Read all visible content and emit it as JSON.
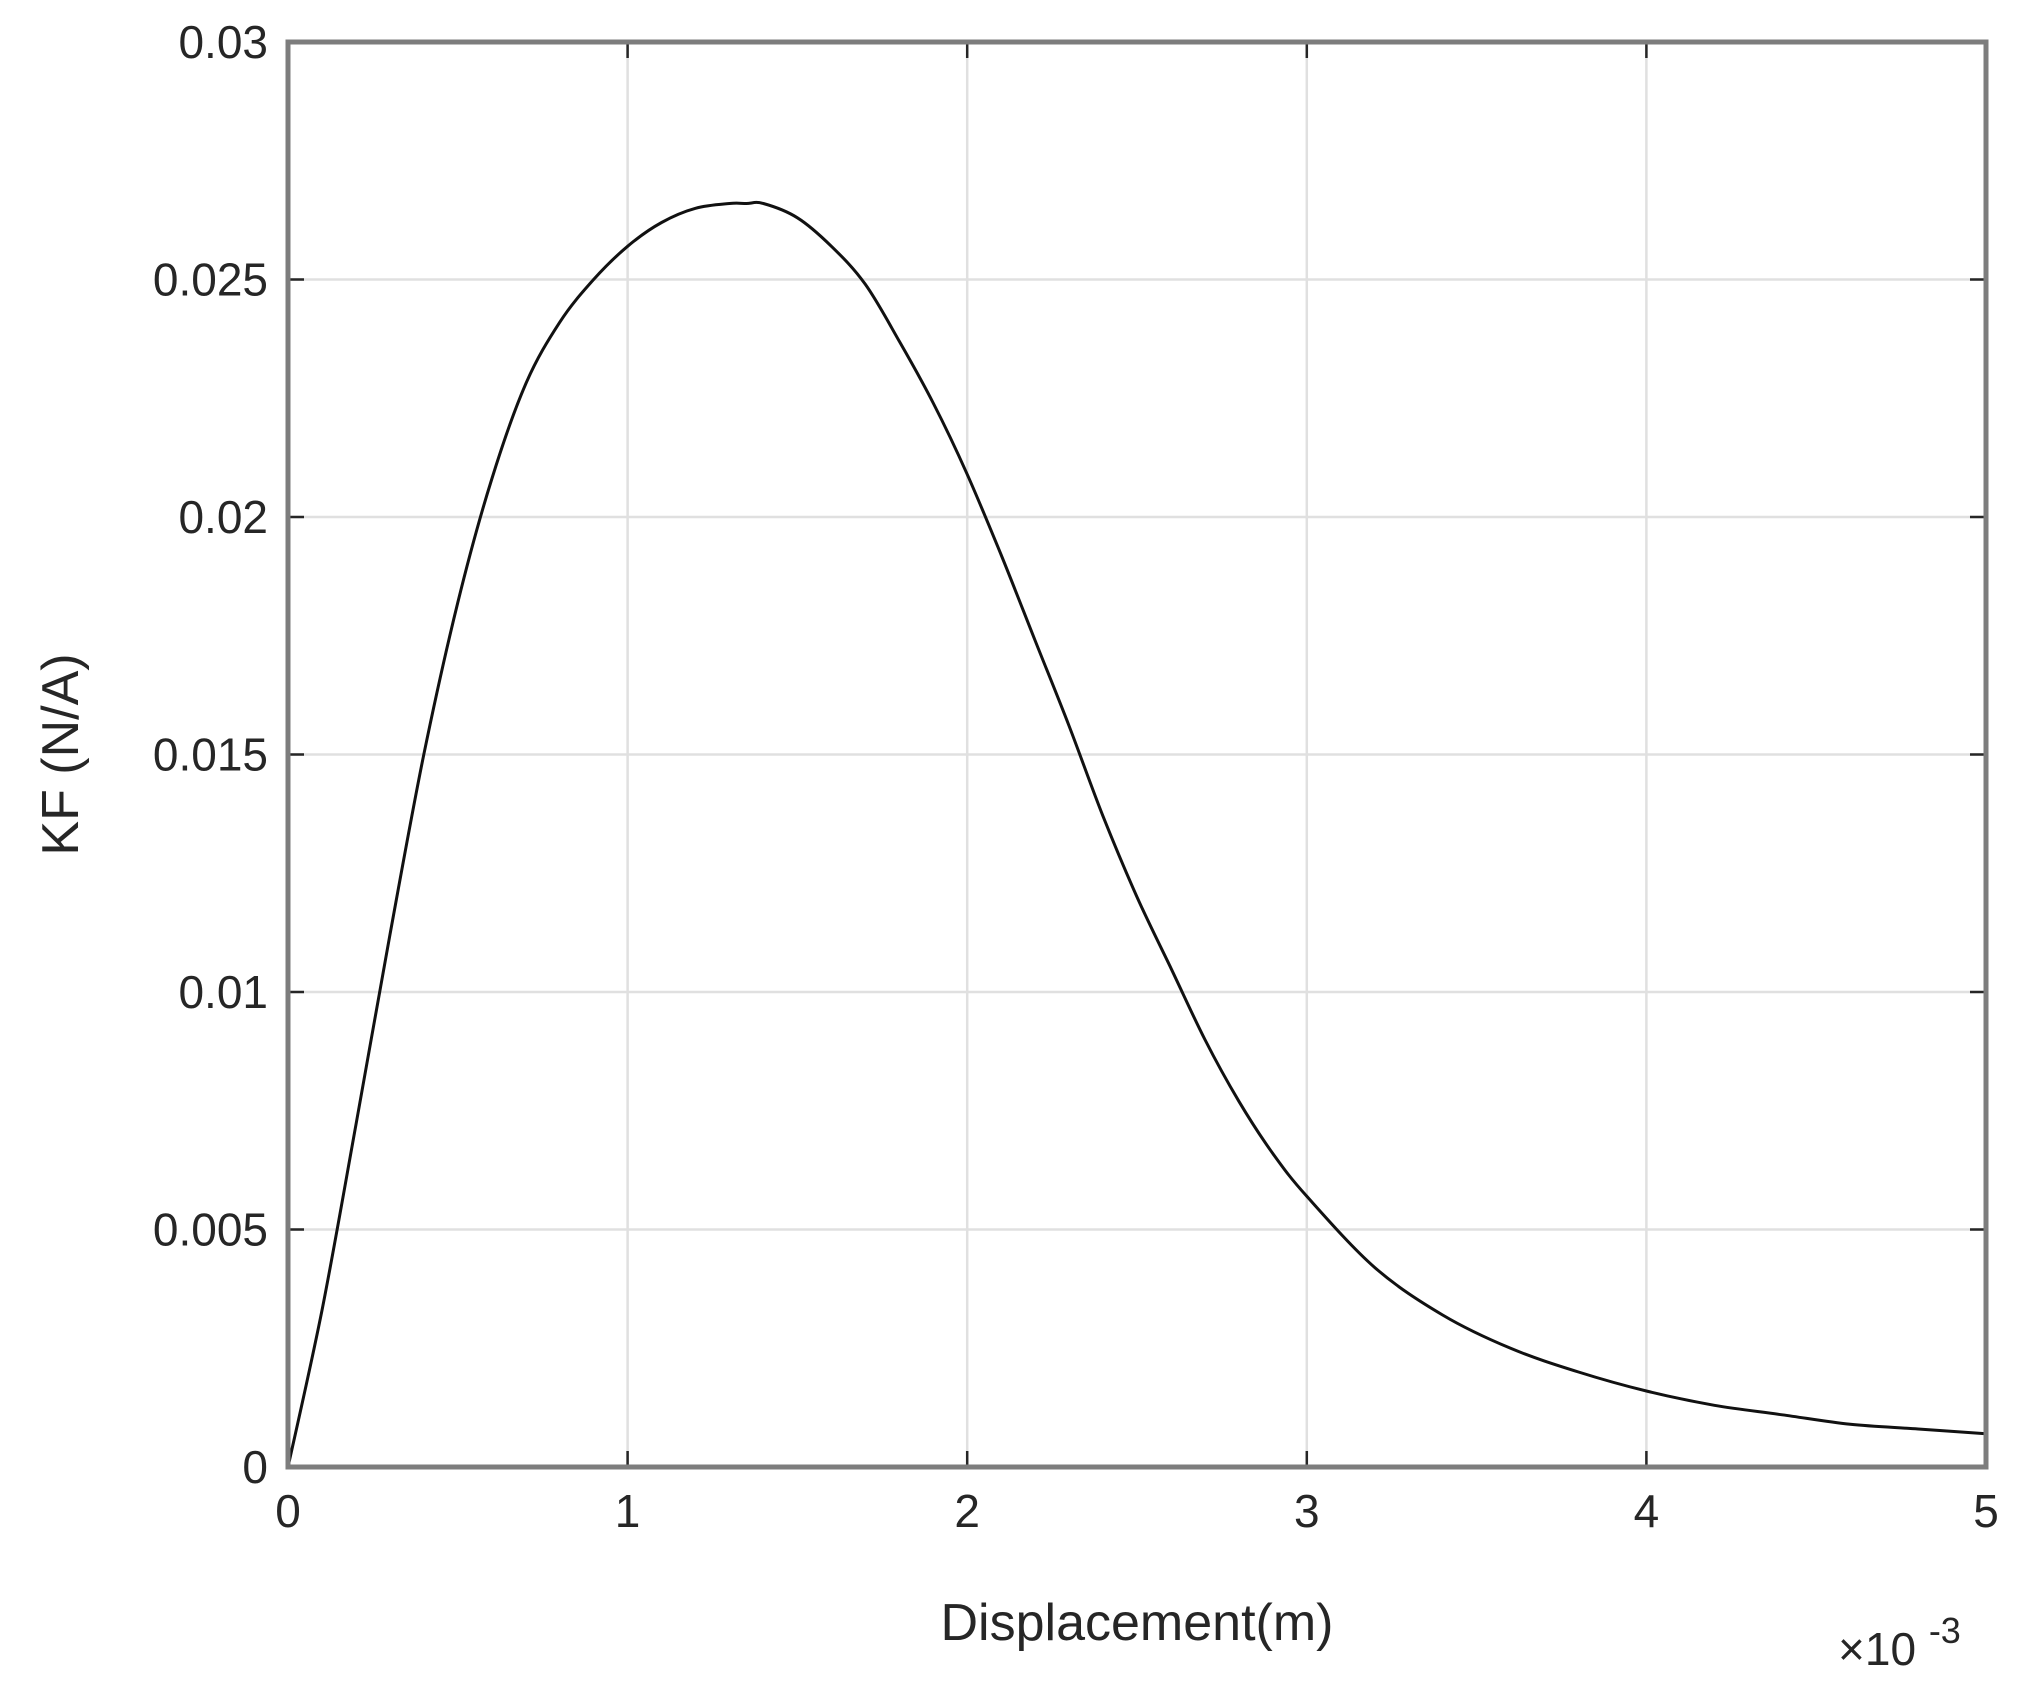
{
  "chart_data": {
    "type": "line",
    "title": "",
    "xlabel": "Displacement(m)",
    "ylabel": "KF (N/A)",
    "x_exponent_label": "×10",
    "x_exponent_power": "-3",
    "xlim": [
      0,
      5
    ],
    "ylim": [
      0,
      0.03
    ],
    "x_ticks": [
      0,
      1,
      2,
      3,
      4,
      5
    ],
    "x_tick_labels": [
      "0",
      "1",
      "2",
      "3",
      "4",
      "5"
    ],
    "y_ticks": [
      0,
      0.005,
      0.01,
      0.015,
      0.02,
      0.025,
      0.03
    ],
    "y_tick_labels": [
      "0",
      "0.005",
      "0.01",
      "0.015",
      "0.02",
      "0.025",
      "0.03"
    ],
    "grid": true,
    "series": [
      {
        "color": "#111111",
        "x": [
          0,
          0.1,
          0.2,
          0.3,
          0.4,
          0.5,
          0.6,
          0.7,
          0.8,
          0.9,
          1.0,
          1.1,
          1.2,
          1.3,
          1.35,
          1.4,
          1.5,
          1.6,
          1.7,
          1.8,
          1.9,
          2.0,
          2.1,
          2.2,
          2.3,
          2.4,
          2.5,
          2.6,
          2.7,
          2.8,
          2.9,
          3.0,
          3.2,
          3.4,
          3.6,
          3.8,
          4.0,
          4.2,
          4.4,
          4.6,
          4.8,
          5.0
        ],
        "y": [
          0,
          0.0033,
          0.0072,
          0.0112,
          0.015,
          0.0182,
          0.0208,
          0.0228,
          0.0241,
          0.025,
          0.0257,
          0.0262,
          0.0265,
          0.0266,
          0.0266,
          0.0266,
          0.0263,
          0.0257,
          0.0249,
          0.0237,
          0.0224,
          0.0209,
          0.0192,
          0.0174,
          0.0156,
          0.0137,
          0.012,
          0.0105,
          0.009,
          0.0077,
          0.0066,
          0.0057,
          0.0042,
          0.0032,
          0.0025,
          0.002,
          0.0016,
          0.0013,
          0.0011,
          0.0009,
          0.0008,
          0.0007
        ]
      }
    ]
  }
}
